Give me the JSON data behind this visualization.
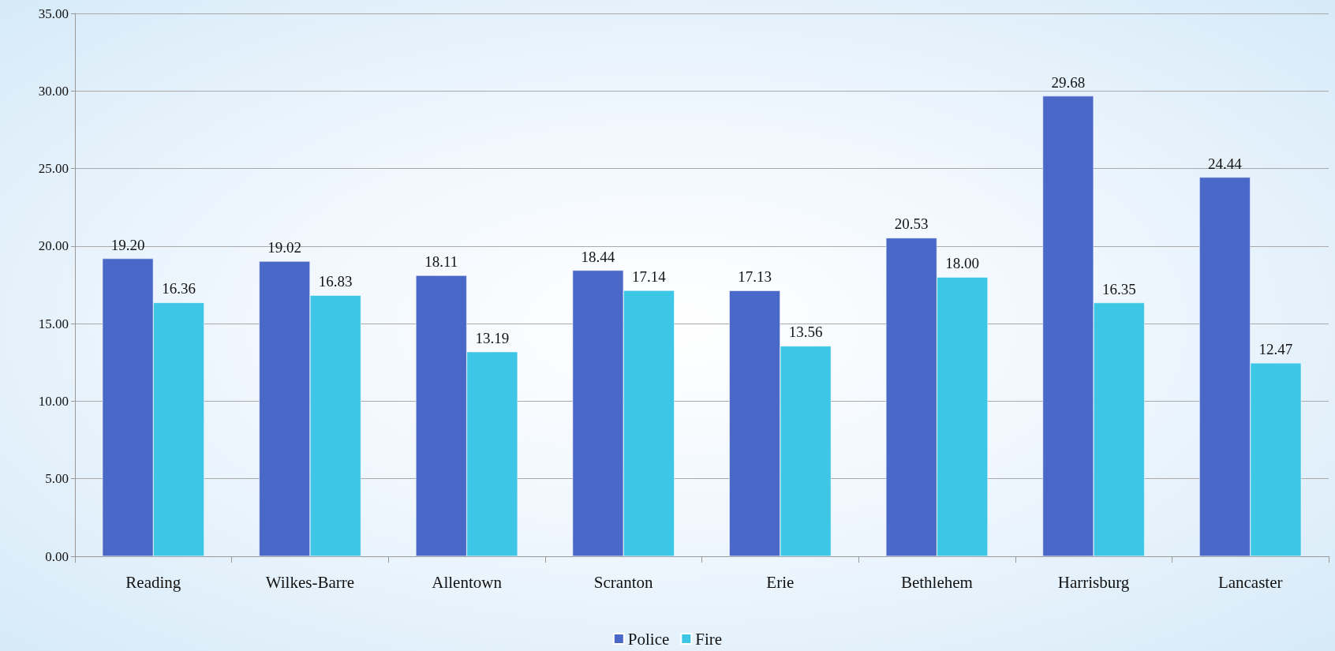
{
  "chart_data": {
    "type": "bar",
    "categories": [
      "Reading",
      "Wilkes-Barre",
      "Allentown",
      "Scranton",
      "Erie",
      "Bethlehem",
      "Harrisburg",
      "Lancaster"
    ],
    "series": [
      {
        "name": "Police",
        "color": "#4a68c8",
        "values": [
          19.2,
          19.02,
          18.11,
          18.44,
          17.13,
          20.53,
          29.68,
          24.44
        ],
        "value_labels": [
          "19.20",
          "19.02",
          "18.11",
          "18.44",
          "17.13",
          "20.53",
          "29.68",
          "24.44"
        ]
      },
      {
        "name": "Fire",
        "color": "#3ec6e6",
        "values": [
          16.36,
          16.83,
          13.19,
          17.14,
          13.56,
          18.0,
          16.35,
          12.47
        ],
        "value_labels": [
          "16.36",
          "16.83",
          "13.19",
          "17.14",
          "13.56",
          "18.00",
          "16.35",
          "12.47"
        ]
      }
    ],
    "ylim": [
      0,
      35
    ],
    "yticks": [
      {
        "value": 0,
        "label": "0.00"
      },
      {
        "value": 5,
        "label": "5.00"
      },
      {
        "value": 10,
        "label": "10.00"
      },
      {
        "value": 15,
        "label": "15.00"
      },
      {
        "value": 20,
        "label": "20.00"
      },
      {
        "value": 25,
        "label": "25.00"
      },
      {
        "value": 30,
        "label": "30.00"
      },
      {
        "value": 35,
        "label": "35.00"
      }
    ],
    "grid": "y",
    "legend": "bottom"
  }
}
